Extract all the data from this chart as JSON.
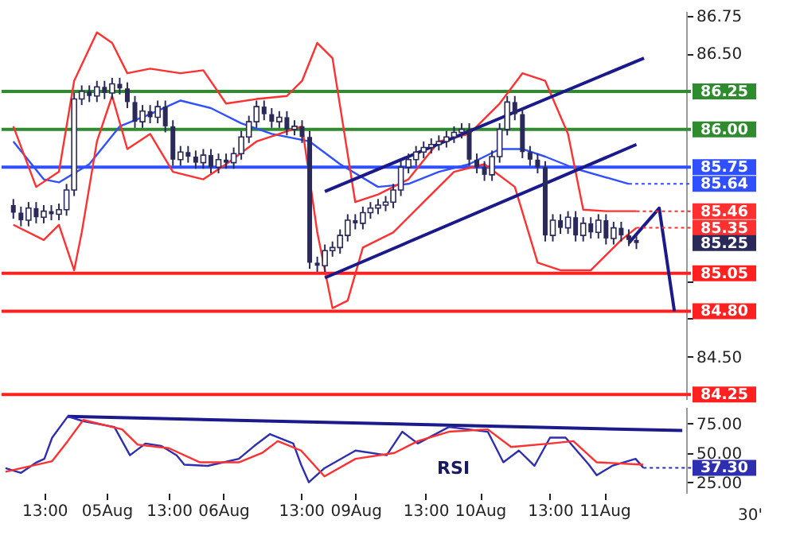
{
  "chart_data": [
    {
      "type": "candlestick",
      "tick_labels": "y",
      "grid": false,
      "color": "#2a2a5a",
      "categories": [
        null,
        null,
        null,
        null,
        null,
        null,
        null,
        null,
        null,
        null,
        null,
        null,
        null,
        null,
        null,
        null,
        null,
        null,
        null,
        null,
        null,
        null,
        null,
        null,
        null,
        null,
        null,
        null,
        null,
        null,
        null,
        null,
        null,
        null,
        null,
        null,
        null,
        null,
        null,
        null,
        null,
        null,
        null,
        null,
        null,
        null,
        null,
        null,
        null,
        null,
        null,
        null,
        null,
        null,
        null,
        null,
        null,
        null,
        null,
        null,
        null,
        null,
        null,
        null,
        null,
        null,
        null,
        null,
        null,
        null,
        null,
        null,
        null,
        null,
        null,
        null,
        null,
        null,
        null,
        null,
        null,
        null,
        null,
        null,
        null,
        null,
        null,
        null
      ],
      "ylim": [
        84.22,
        86.78
      ],
      "yticks": [
        {
          "value": 84.5,
          "label": "84.50"
        },
        {
          "value": 84.75,
          "label": null
        },
        {
          "value": 85.0,
          "label": null
        },
        {
          "value": 86.5,
          "label": "86.50"
        },
        {
          "value": 86.75,
          "label": "86.75"
        }
      ],
      "ohlc": [
        [
          85.5,
          85.54,
          85.41,
          85.45
        ],
        [
          85.45,
          85.49,
          85.36,
          85.4
        ],
        [
          85.4,
          85.52,
          85.36,
          85.48
        ],
        [
          85.48,
          85.52,
          85.38,
          85.42
        ],
        [
          85.42,
          85.5,
          85.38,
          85.46
        ],
        [
          85.46,
          85.5,
          85.4,
          85.44
        ],
        [
          85.44,
          85.51,
          85.4,
          85.47
        ],
        [
          85.47,
          85.64,
          85.43,
          85.6
        ],
        [
          85.6,
          86.24,
          85.56,
          86.2
        ],
        [
          86.2,
          86.29,
          86.16,
          86.25
        ],
        [
          86.25,
          86.29,
          86.18,
          86.22
        ],
        [
          86.22,
          86.32,
          86.18,
          86.28
        ],
        [
          86.28,
          86.32,
          86.2,
          86.24
        ],
        [
          86.24,
          86.34,
          86.2,
          86.3
        ],
        [
          86.3,
          86.34,
          86.23,
          86.27
        ],
        [
          86.27,
          86.31,
          86.14,
          86.18
        ],
        [
          86.18,
          86.22,
          86.01,
          86.05
        ],
        [
          86.05,
          86.16,
          86.01,
          86.12
        ],
        [
          86.12,
          86.16,
          86.04,
          86.08
        ],
        [
          86.08,
          86.19,
          86.04,
          86.15
        ],
        [
          86.15,
          86.19,
          85.98,
          86.02
        ],
        [
          86.02,
          86.06,
          85.76,
          85.8
        ],
        [
          85.8,
          85.89,
          85.76,
          85.85
        ],
        [
          85.85,
          85.89,
          85.78,
          85.82
        ],
        [
          85.82,
          85.86,
          85.74,
          85.78
        ],
        [
          85.78,
          85.87,
          85.74,
          85.83
        ],
        [
          85.83,
          85.87,
          85.71,
          85.75
        ],
        [
          85.75,
          85.84,
          85.71,
          85.8
        ],
        [
          85.8,
          85.84,
          85.74,
          85.78
        ],
        [
          85.78,
          85.88,
          85.74,
          85.84
        ],
        [
          85.84,
          85.99,
          85.8,
          85.95
        ],
        [
          85.95,
          86.09,
          85.91,
          86.05
        ],
        [
          86.05,
          86.19,
          86.01,
          86.15
        ],
        [
          86.15,
          86.19,
          86.06,
          86.1
        ],
        [
          86.1,
          86.14,
          86.01,
          86.05
        ],
        [
          86.05,
          86.12,
          86.01,
          86.08
        ],
        [
          86.08,
          86.12,
          85.96,
          86.0
        ],
        [
          86.0,
          86.06,
          85.96,
          86.02
        ],
        [
          86.02,
          86.06,
          85.91,
          85.95
        ],
        [
          85.95,
          85.99,
          85.08,
          85.12
        ],
        [
          85.12,
          85.16,
          85.06,
          85.1
        ],
        [
          85.1,
          85.24,
          85.06,
          85.2
        ],
        [
          85.2,
          85.26,
          85.16,
          85.22
        ],
        [
          85.22,
          85.34,
          85.18,
          85.3
        ],
        [
          85.3,
          85.44,
          85.26,
          85.4
        ],
        [
          85.4,
          85.44,
          85.34,
          85.38
        ],
        [
          85.38,
          85.49,
          85.34,
          85.45
        ],
        [
          85.45,
          85.52,
          85.41,
          85.48
        ],
        [
          85.48,
          85.54,
          85.44,
          85.5
        ],
        [
          85.5,
          85.56,
          85.46,
          85.52
        ],
        [
          85.52,
          85.64,
          85.48,
          85.6
        ],
        [
          85.6,
          85.79,
          85.56,
          85.75
        ],
        [
          85.75,
          85.84,
          85.71,
          85.8
        ],
        [
          85.8,
          85.89,
          85.76,
          85.85
        ],
        [
          85.85,
          85.92,
          85.81,
          85.88
        ],
        [
          85.88,
          85.94,
          85.84,
          85.9
        ],
        [
          85.9,
          85.96,
          85.86,
          85.92
        ],
        [
          85.92,
          85.99,
          85.88,
          85.95
        ],
        [
          85.95,
          86.02,
          85.91,
          85.98
        ],
        [
          85.98,
          86.04,
          85.94,
          86.0
        ],
        [
          86.0,
          86.04,
          85.76,
          85.8
        ],
        [
          85.8,
          85.84,
          85.71,
          85.75
        ],
        [
          85.75,
          85.79,
          85.66,
          85.7
        ],
        [
          85.7,
          85.86,
          85.66,
          85.82
        ],
        [
          85.82,
          86.04,
          85.78,
          86.0
        ],
        [
          86.0,
          86.22,
          85.96,
          86.18
        ],
        [
          86.18,
          86.22,
          86.06,
          86.1
        ],
        [
          86.1,
          86.14,
          85.81,
          85.85
        ],
        [
          85.85,
          85.89,
          85.76,
          85.8
        ],
        [
          85.8,
          85.84,
          85.71,
          85.75
        ],
        [
          85.75,
          85.79,
          85.26,
          85.3
        ],
        [
          85.3,
          85.44,
          85.26,
          85.4
        ],
        [
          85.4,
          85.44,
          85.31,
          85.35
        ],
        [
          85.35,
          85.46,
          85.31,
          85.42
        ],
        [
          85.42,
          85.46,
          85.26,
          85.3
        ],
        [
          85.3,
          85.42,
          85.26,
          85.38
        ],
        [
          85.38,
          85.42,
          85.28,
          85.32
        ],
        [
          85.32,
          85.44,
          85.28,
          85.4
        ],
        [
          85.4,
          85.44,
          85.24,
          85.28
        ],
        [
          85.28,
          85.39,
          85.24,
          85.35
        ],
        [
          85.35,
          85.39,
          85.26,
          85.3
        ],
        [
          85.3,
          85.34,
          85.23,
          85.27
        ],
        [
          85.27,
          85.31,
          85.21,
          85.25
        ],
        null,
        null,
        null,
        null,
        null
      ],
      "series": [
        {
          "type": "line",
          "color": "#3050ff",
          "value_labels": [
            null,
            null,
            null,
            null,
            null,
            null,
            null,
            null,
            null,
            null,
            null,
            null,
            null,
            null,
            null,
            null,
            null,
            null,
            null,
            null,
            null,
            null,
            null,
            null,
            null,
            null,
            null,
            null,
            null,
            null,
            null,
            null,
            null,
            null,
            null,
            null,
            null,
            null,
            null,
            null,
            null,
            null,
            null,
            null,
            null,
            null,
            null,
            null,
            null,
            null,
            null,
            null,
            null,
            null,
            null,
            null,
            null,
            null,
            null,
            null,
            null,
            null,
            null,
            null,
            null,
            null,
            null,
            null,
            null,
            null,
            null,
            null,
            null,
            null,
            null,
            null,
            null,
            null,
            null,
            null,
            null,
            "85.64",
            null,
            null,
            null,
            null,
            null,
            null
          ],
          "values": [
            85.92,
            null,
            null,
            null,
            85.67,
            null,
            85.65,
            null,
            null,
            null,
            85.77,
            null,
            null,
            null,
            86.02,
            null,
            null,
            null,
            86.1,
            null,
            null,
            null,
            86.19,
            null,
            null,
            null,
            86.14,
            null,
            null,
            null,
            86.04,
            null,
            null,
            null,
            85.97,
            null,
            null,
            null,
            null,
            85.92,
            null,
            null,
            null,
            85.77,
            null,
            null,
            null,
            null,
            85.62,
            null,
            null,
            null,
            85.64,
            null,
            null,
            null,
            85.72,
            null,
            null,
            null,
            85.77,
            null,
            null,
            null,
            85.87,
            null,
            null,
            85.87,
            null,
            null,
            85.82,
            null,
            null,
            null,
            85.74,
            null,
            null,
            null,
            null,
            null,
            null,
            85.64,
            null,
            null,
            null,
            null,
            null,
            null
          ]
        },
        {
          "type": "line",
          "color": "#ff3030",
          "value_labels": [
            null,
            null,
            null,
            null,
            null,
            null,
            null,
            null,
            null,
            null,
            null,
            null,
            null,
            null,
            null,
            null,
            null,
            null,
            null,
            null,
            null,
            null,
            null,
            null,
            null,
            null,
            null,
            null,
            null,
            null,
            null,
            null,
            null,
            null,
            null,
            null,
            null,
            null,
            null,
            null,
            null,
            null,
            null,
            null,
            null,
            null,
            null,
            null,
            null,
            null,
            null,
            null,
            null,
            null,
            null,
            null,
            null,
            null,
            null,
            null,
            null,
            null,
            null,
            null,
            null,
            null,
            null,
            null,
            null,
            null,
            null,
            null,
            null,
            null,
            null,
            null,
            null,
            null,
            null,
            null,
            null,
            null,
            "85.46",
            null,
            null,
            null,
            null,
            null
          ],
          "values": [
            86.02,
            null,
            null,
            85.62,
            null,
            null,
            85.72,
            null,
            86.32,
            null,
            null,
            86.64,
            null,
            86.57,
            null,
            86.37,
            null,
            null,
            86.4,
            null,
            null,
            null,
            86.37,
            null,
            null,
            86.39,
            null,
            null,
            86.17,
            null,
            null,
            null,
            86.2,
            null,
            null,
            null,
            86.22,
            null,
            86.32,
            null,
            86.57,
            null,
            86.47,
            null,
            null,
            85.52,
            null,
            null,
            85.57,
            null,
            null,
            null,
            85.67,
            null,
            null,
            null,
            85.92,
            null,
            null,
            null,
            85.97,
            null,
            null,
            null,
            86.17,
            null,
            null,
            86.37,
            null,
            null,
            86.32,
            null,
            null,
            85.97,
            null,
            85.47,
            null,
            null,
            85.46,
            null,
            null,
            null,
            85.46,
            null,
            null,
            null,
            null,
            null
          ]
        },
        {
          "type": "line",
          "color": "#ff3030",
          "value_labels": [
            null,
            null,
            null,
            null,
            null,
            null,
            null,
            null,
            null,
            null,
            null,
            null,
            null,
            null,
            null,
            null,
            null,
            null,
            null,
            null,
            null,
            null,
            null,
            null,
            null,
            null,
            null,
            null,
            null,
            null,
            null,
            null,
            null,
            null,
            null,
            null,
            null,
            null,
            null,
            null,
            null,
            null,
            null,
            null,
            null,
            null,
            null,
            null,
            null,
            null,
            null,
            null,
            null,
            null,
            null,
            null,
            null,
            null,
            null,
            null,
            null,
            null,
            null,
            null,
            null,
            null,
            null,
            null,
            null,
            null,
            null,
            null,
            null,
            null,
            null,
            null,
            null,
            null,
            null,
            null,
            null,
            null,
            "85.35",
            null,
            null,
            null,
            null,
            null
          ],
          "values": [
            85.37,
            null,
            null,
            null,
            85.27,
            null,
            85.37,
            null,
            85.07,
            85.32,
            null,
            85.92,
            null,
            86.22,
            null,
            85.87,
            null,
            null,
            85.97,
            null,
            null,
            85.72,
            null,
            null,
            null,
            85.67,
            null,
            null,
            85.77,
            null,
            null,
            null,
            85.92,
            null,
            null,
            85.97,
            null,
            null,
            86.02,
            null,
            85.32,
            null,
            84.82,
            null,
            84.87,
            null,
            85.22,
            null,
            null,
            null,
            85.32,
            null,
            null,
            null,
            85.52,
            null,
            null,
            null,
            85.72,
            null,
            null,
            null,
            85.77,
            null,
            null,
            null,
            85.62,
            null,
            null,
            85.12,
            null,
            null,
            85.07,
            null,
            null,
            null,
            85.07,
            null,
            null,
            null,
            85.27,
            null,
            85.35,
            null,
            null,
            null,
            null,
            null
          ]
        },
        {
          "type": "line",
          "color": "#1a1a8c",
          "values": [
            null,
            null,
            null,
            null,
            null,
            null,
            null,
            null,
            null,
            null,
            null,
            null,
            null,
            null,
            null,
            null,
            null,
            null,
            null,
            null,
            null,
            null,
            null,
            null,
            null,
            null,
            null,
            null,
            null,
            null,
            null,
            null,
            null,
            null,
            null,
            null,
            null,
            null,
            null,
            null,
            null,
            null,
            null,
            null,
            null,
            null,
            null,
            null,
            null,
            null,
            null,
            null,
            null,
            null,
            null,
            null,
            null,
            null,
            null,
            null,
            null,
            null,
            null,
            null,
            null,
            null,
            null,
            null,
            null,
            null,
            null,
            null,
            null,
            null,
            null,
            null,
            null,
            null,
            null,
            null,
            null,
            85.25,
            null,
            null,
            null,
            85.48,
            null,
            84.8
          ]
        },
        {
          "type": "line",
          "color": "#1a1a8c",
          "values": [
            null,
            null,
            null,
            null,
            null,
            null,
            null,
            null,
            null,
            null,
            null,
            null,
            null,
            null,
            null,
            null,
            null,
            null,
            null,
            null,
            null,
            null,
            null,
            null,
            null,
            null,
            null,
            null,
            null,
            null,
            null,
            null,
            null,
            null,
            null,
            null,
            null,
            null,
            null,
            null,
            null,
            85.59,
            null,
            null,
            null,
            null,
            null,
            null,
            null,
            null,
            null,
            null,
            null,
            null,
            null,
            null,
            null,
            null,
            null,
            null,
            null,
            null,
            null,
            null,
            null,
            null,
            null,
            null,
            null,
            null,
            null,
            null,
            null,
            null,
            null,
            null,
            null,
            null,
            null,
            null,
            null,
            null,
            null,
            86.47,
            null,
            null,
            null,
            null
          ]
        },
        {
          "type": "line",
          "color": "#1a1a8c",
          "values": [
            null,
            null,
            null,
            null,
            null,
            null,
            null,
            null,
            null,
            null,
            null,
            null,
            null,
            null,
            null,
            null,
            null,
            null,
            null,
            null,
            null,
            null,
            null,
            null,
            null,
            null,
            null,
            null,
            null,
            null,
            null,
            null,
            null,
            null,
            null,
            null,
            null,
            null,
            null,
            null,
            null,
            85.02,
            null,
            null,
            null,
            null,
            null,
            null,
            null,
            null,
            null,
            null,
            null,
            null,
            null,
            null,
            null,
            null,
            null,
            null,
            null,
            null,
            null,
            null,
            null,
            null,
            null,
            null,
            null,
            null,
            null,
            null,
            null,
            null,
            null,
            null,
            null,
            null,
            null,
            null,
            null,
            null,
            85.9,
            null,
            null,
            null,
            null,
            null
          ]
        }
      ],
      "ref_lines": [
        {
          "axis": "y",
          "value": 86.25,
          "label": "86.25",
          "color": "#2e8b2e"
        },
        {
          "axis": "y",
          "value": 86.0,
          "label": "86.00",
          "color": "#2e8b2e"
        },
        {
          "axis": "y",
          "value": 85.75,
          "label": "85.75",
          "color": "#3050ff"
        },
        {
          "axis": "y",
          "value": 85.05,
          "label": "85.05",
          "color": "#ff2020"
        },
        {
          "axis": "y",
          "value": 84.8,
          "label": "84.80",
          "color": "#ff2020"
        },
        {
          "axis": "y",
          "value": 84.25,
          "label": "84.25",
          "color": "#ff2020"
        }
      ],
      "value_labels": [
        null,
        null,
        null,
        null,
        null,
        null,
        null,
        null,
        null,
        null,
        null,
        null,
        null,
        null,
        null,
        null,
        null,
        null,
        null,
        null,
        null,
        null,
        null,
        null,
        null,
        null,
        null,
        null,
        null,
        null,
        null,
        null,
        null,
        null,
        null,
        null,
        null,
        null,
        null,
        null,
        null,
        null,
        null,
        null,
        null,
        null,
        null,
        null,
        null,
        null,
        null,
        null,
        null,
        null,
        null,
        null,
        null,
        null,
        null,
        null,
        null,
        null,
        null,
        null,
        null,
        null,
        null,
        null,
        null,
        null,
        null,
        null,
        null,
        null,
        null,
        null,
        null,
        null,
        null,
        null,
        null,
        null,
        "85.25",
        null,
        null,
        null,
        null,
        null
      ]
    },
    {
      "type": "line",
      "grid": false,
      "categories": [
        null,
        null,
        null,
        null,
        null,
        "13:00",
        null,
        null,
        null,
        null,
        null,
        null,
        null,
        "05Aug",
        null,
        null,
        null,
        null,
        null,
        null,
        null,
        "13:00",
        null,
        null,
        null,
        null,
        null,
        null,
        "06Aug",
        null,
        null,
        null,
        null,
        null,
        null,
        null,
        null,
        null,
        "13:00",
        null,
        null,
        null,
        null,
        null,
        null,
        "09Aug",
        null,
        null,
        null,
        null,
        null,
        null,
        null,
        null,
        "13:00",
        null,
        null,
        null,
        null,
        null,
        null,
        "10Aug",
        null,
        null,
        null,
        null,
        null,
        null,
        null,
        null,
        "13:00",
        null,
        null,
        null,
        null,
        null,
        null,
        "11Aug",
        null,
        null,
        null,
        null,
        null,
        null,
        null,
        null,
        null,
        null
      ],
      "ylim": [
        16,
        89
      ],
      "yticks": [
        {
          "value": 25,
          "label": "25.00"
        },
        {
          "value": 50,
          "label": "50.00"
        },
        {
          "value": 75,
          "label": "75.00"
        }
      ],
      "series": [
        {
          "type": "line",
          "color": "#1a1a8c",
          "values": [
            null,
            null,
            null,
            null,
            null,
            null,
            null,
            null,
            81,
            null,
            null,
            null,
            null,
            null,
            null,
            null,
            null,
            null,
            null,
            null,
            null,
            null,
            null,
            null,
            null,
            null,
            null,
            null,
            null,
            null,
            null,
            null,
            null,
            null,
            null,
            null,
            null,
            null,
            null,
            null,
            null,
            null,
            null,
            null,
            null,
            null,
            null,
            null,
            null,
            null,
            null,
            null,
            null,
            null,
            null,
            null,
            null,
            null,
            null,
            null,
            null,
            null,
            null,
            null,
            null,
            null,
            null,
            null,
            null,
            null,
            null,
            null,
            null,
            null,
            null,
            null,
            null,
            null,
            null,
            null,
            null,
            null,
            null,
            null,
            null,
            null,
            null,
            69
          ]
        },
        {
          "type": "line",
          "color": "#2e2eb0",
          "value_labels": [
            null,
            null,
            null,
            null,
            null,
            null,
            null,
            null,
            null,
            null,
            null,
            null,
            null,
            null,
            null,
            null,
            null,
            null,
            null,
            null,
            null,
            null,
            null,
            null,
            null,
            null,
            null,
            null,
            null,
            null,
            null,
            null,
            null,
            null,
            null,
            null,
            null,
            null,
            null,
            null,
            null,
            null,
            null,
            null,
            null,
            null,
            null,
            null,
            null,
            null,
            null,
            null,
            null,
            null,
            null,
            null,
            null,
            null,
            null,
            null,
            null,
            null,
            null,
            null,
            null,
            null,
            null,
            null,
            null,
            null,
            null,
            null,
            null,
            null,
            null,
            null,
            null,
            null,
            null,
            null,
            null,
            null,
            "37.30",
            null,
            null,
            null,
            null,
            null
          ],
          "values": [
            37,
            null,
            33,
            null,
            42,
            45,
            63,
            null,
            81,
            null,
            77,
            null,
            null,
            null,
            72,
            null,
            48,
            null,
            58,
            null,
            56,
            null,
            48,
            40,
            null,
            null,
            39,
            null,
            null,
            null,
            45,
            null,
            56,
            null,
            66,
            null,
            null,
            58,
            40,
            25,
            null,
            37,
            null,
            null,
            null,
            52,
            null,
            null,
            null,
            48,
            null,
            68,
            null,
            58,
            null,
            null,
            null,
            72,
            null,
            null,
            null,
            null,
            68,
            null,
            42,
            null,
            52,
            null,
            39,
            null,
            63,
            null,
            63,
            null,
            null,
            40,
            31,
            null,
            39,
            null,
            null,
            45,
            37.3,
            null,
            null,
            null,
            null,
            null
          ]
        },
        {
          "type": "line",
          "color": "#ff3030",
          "values": [
            34,
            null,
            null,
            null,
            null,
            null,
            43,
            null,
            60,
            null,
            78,
            null,
            null,
            null,
            null,
            70,
            null,
            57,
            null,
            null,
            null,
            54,
            null,
            null,
            null,
            42,
            null,
            null,
            null,
            null,
            42,
            null,
            null,
            50,
            null,
            60,
            null,
            null,
            52,
            null,
            null,
            30,
            null,
            null,
            null,
            45,
            null,
            null,
            null,
            null,
            50,
            null,
            null,
            60,
            null,
            null,
            null,
            68,
            null,
            null,
            null,
            null,
            70,
            null,
            null,
            55,
            null,
            null,
            null,
            null,
            58,
            null,
            null,
            60,
            null,
            null,
            42,
            null,
            null,
            null,
            null,
            null,
            40,
            null,
            null,
            null,
            null,
            null
          ]
        }
      ],
      "annotations": [
        "RSI",
        "30'"
      ]
    }
  ]
}
